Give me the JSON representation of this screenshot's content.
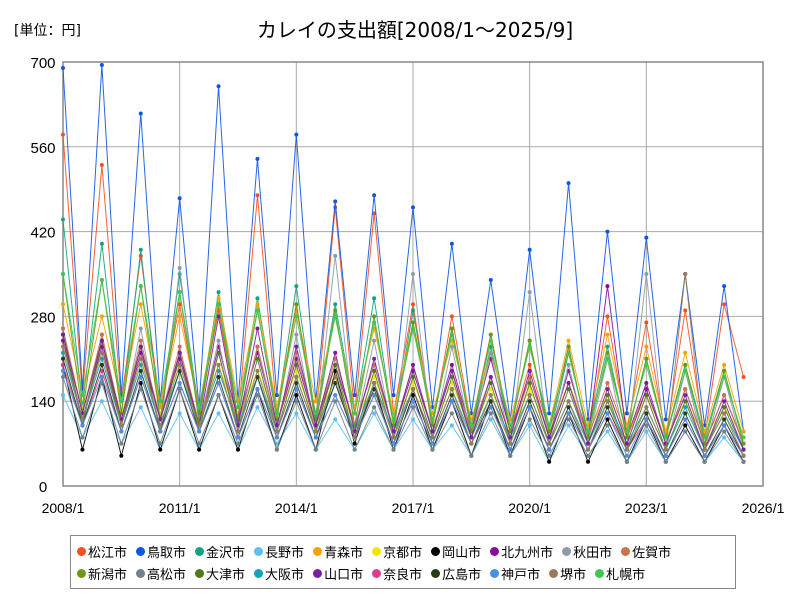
{
  "chart_data": {
    "type": "line",
    "title": "カレイの支出額[2008/1～2025/9]",
    "unit_label": "[単位：円]",
    "xlabel": "",
    "ylabel": "",
    "ylim": [
      0,
      700
    ],
    "yticks": [
      0,
      140,
      280,
      420,
      560,
      700
    ],
    "xticks": [
      "2008/1",
      "2011/1",
      "2014/1",
      "2017/1",
      "2020/1",
      "2023/1",
      "2026/1"
    ],
    "xrange_months": [
      "2008/1",
      "2026/1"
    ],
    "grid": true,
    "legend_position": "bottom",
    "x": [
      "2008/1",
      "2008/7",
      "2009/1",
      "2009/7",
      "2010/1",
      "2010/7",
      "2011/1",
      "2011/7",
      "2012/1",
      "2012/7",
      "2013/1",
      "2013/7",
      "2014/1",
      "2014/7",
      "2015/1",
      "2015/7",
      "2016/1",
      "2016/7",
      "2017/1",
      "2017/7",
      "2018/1",
      "2018/7",
      "2019/1",
      "2019/7",
      "2020/1",
      "2020/7",
      "2021/1",
      "2021/7",
      "2022/1",
      "2022/7",
      "2023/1",
      "2023/7",
      "2024/1",
      "2024/7",
      "2025/1",
      "2025/7"
    ],
    "series": [
      {
        "name": "松江市",
        "color": "#f4511e",
        "values": [
          580,
          150,
          530,
          140,
          380,
          130,
          300,
          120,
          290,
          110,
          480,
          120,
          300,
          110,
          460,
          120,
          450,
          120,
          300,
          100,
          280,
          100,
          250,
          90,
          200,
          90,
          230,
          80,
          280,
          90,
          270,
          80,
          290,
          80,
          300,
          180
        ]
      },
      {
        "name": "鳥取市",
        "color": "#0d57e6",
        "values": [
          690,
          160,
          695,
          150,
          615,
          140,
          475,
          130,
          660,
          140,
          540,
          150,
          580,
          140,
          470,
          150,
          480,
          150,
          460,
          130,
          400,
          120,
          340,
          110,
          390,
          120,
          500,
          110,
          420,
          120,
          410,
          110,
          350,
          100,
          330,
          90
        ]
      },
      {
        "name": "金沢市",
        "color": "#14a37f",
        "values": [
          440,
          130,
          400,
          120,
          390,
          110,
          350,
          120,
          320,
          110,
          310,
          120,
          330,
          110,
          300,
          120,
          310,
          100,
          290,
          100,
          260,
          90,
          230,
          90,
          240,
          80,
          220,
          90,
          230,
          80,
          210,
          80,
          200,
          80,
          190,
          70
        ]
      },
      {
        "name": "長野市",
        "color": "#5cc1f2",
        "values": [
          150,
          80,
          140,
          70,
          130,
          60,
          120,
          60,
          120,
          60,
          130,
          70,
          120,
          60,
          110,
          60,
          120,
          60,
          110,
          60,
          100,
          50,
          110,
          50,
          100,
          40,
          100,
          50,
          90,
          40,
          90,
          40,
          90,
          40,
          80,
          40
        ]
      },
      {
        "name": "青森市",
        "color": "#f5a300",
        "values": [
          300,
          150,
          280,
          140,
          300,
          130,
          280,
          130,
          310,
          140,
          300,
          130,
          290,
          140,
          280,
          130,
          260,
          120,
          270,
          120,
          240,
          110,
          220,
          110,
          230,
          100,
          240,
          100,
          250,
          100,
          230,
          90,
          220,
          90,
          200,
          90
        ]
      },
      {
        "name": "京都市",
        "color": "#f2e600",
        "values": [
          230,
          130,
          220,
          120,
          210,
          120,
          200,
          110,
          200,
          110,
          190,
          110,
          190,
          100,
          180,
          100,
          180,
          100,
          170,
          100,
          170,
          90,
          160,
          90,
          160,
          90,
          170,
          90,
          150,
          80,
          150,
          80,
          140,
          80,
          130,
          80
        ]
      },
      {
        "name": "岡山市",
        "color": "#000000",
        "values": [
          200,
          60,
          180,
          50,
          170,
          60,
          160,
          60,
          150,
          60,
          160,
          60,
          150,
          60,
          190,
          70,
          170,
          60,
          150,
          60,
          140,
          50,
          140,
          50,
          130,
          40,
          120,
          40,
          110,
          40,
          110,
          40,
          100,
          40,
          100,
          40
        ]
      },
      {
        "name": "北九州市",
        "color": "#8a0d99",
        "values": [
          240,
          110,
          230,
          100,
          220,
          110,
          210,
          100,
          230,
          110,
          220,
          100,
          210,
          100,
          200,
          100,
          200,
          90,
          190,
          90,
          200,
          90,
          210,
          90,
          180,
          80,
          190,
          80,
          330,
          80,
          170,
          70,
          160,
          70,
          150,
          70
        ]
      },
      {
        "name": "秋田市",
        "color": "#8e9aa8",
        "values": [
          260,
          100,
          250,
          100,
          260,
          90,
          360,
          100,
          240,
          90,
          230,
          90,
          250,
          90,
          380,
          90,
          240,
          80,
          350,
          80,
          230,
          80,
          220,
          70,
          320,
          70,
          200,
          70,
          210,
          60,
          350,
          60,
          190,
          60,
          180,
          60
        ]
      },
      {
        "name": "佐賀市",
        "color": "#c8744c",
        "values": [
          260,
          120,
          250,
          110,
          240,
          110,
          230,
          100,
          220,
          100,
          230,
          100,
          220,
          100,
          210,
          100,
          200,
          90,
          200,
          90,
          190,
          90,
          180,
          80,
          180,
          80,
          170,
          80,
          170,
          80,
          160,
          70,
          160,
          70,
          150,
          70
        ]
      },
      {
        "name": "新潟市",
        "color": "#6a9a12",
        "values": [
          350,
          120,
          340,
          120,
          330,
          110,
          320,
          110,
          300,
          110,
          290,
          110,
          300,
          100,
          290,
          100,
          280,
          100,
          270,
          100,
          260,
          90,
          250,
          90,
          240,
          90,
          230,
          80,
          220,
          80,
          210,
          80,
          200,
          70,
          190,
          70
        ]
      },
      {
        "name": "高松市",
        "color": "#6f8389",
        "values": [
          180,
          80,
          170,
          70,
          160,
          70,
          160,
          70,
          150,
          70,
          150,
          60,
          140,
          60,
          140,
          60,
          130,
          60,
          130,
          60,
          120,
          50,
          120,
          50,
          110,
          50,
          110,
          50,
          100,
          40,
          100,
          40,
          90,
          40,
          90,
          40
        ]
      },
      {
        "name": "大津市",
        "color": "#4f7a1e",
        "values": [
          250,
          100,
          240,
          100,
          230,
          90,
          220,
          90,
          220,
          90,
          210,
          90,
          200,
          90,
          200,
          80,
          190,
          80,
          180,
          80,
          180,
          80,
          170,
          70,
          170,
          70,
          160,
          70,
          150,
          60,
          150,
          60,
          140,
          60,
          130,
          60
        ]
      },
      {
        "name": "大阪市",
        "color": "#12a3b8",
        "values": [
          220,
          110,
          210,
          100,
          200,
          100,
          190,
          100,
          190,
          100,
          180,
          90,
          180,
          90,
          170,
          90,
          170,
          90,
          160,
          80,
          160,
          80,
          150,
          80,
          150,
          70,
          140,
          70,
          140,
          70,
          130,
          60,
          130,
          60,
          120,
          60
        ]
      },
      {
        "name": "山口市",
        "color": "#7b1fa2",
        "values": [
          250,
          120,
          240,
          110,
          230,
          110,
          220,
          100,
          280,
          100,
          260,
          100,
          230,
          100,
          220,
          90,
          210,
          90,
          200,
          90,
          190,
          80,
          180,
          80,
          190,
          80,
          170,
          70,
          160,
          70,
          160,
          70,
          150,
          60,
          140,
          60
        ]
      },
      {
        "name": "奈良市",
        "color": "#e33b8c",
        "values": [
          200,
          100,
          190,
          90,
          180,
          90,
          170,
          90,
          170,
          80,
          160,
          80,
          160,
          80,
          150,
          80,
          150,
          70,
          140,
          70,
          140,
          70,
          130,
          60,
          130,
          60,
          120,
          60,
          120,
          60,
          110,
          50,
          110,
          50,
          100,
          50
        ]
      },
      {
        "name": "広島市",
        "color": "#263d1a",
        "values": [
          210,
          100,
          200,
          90,
          190,
          90,
          190,
          90,
          180,
          80,
          180,
          80,
          170,
          80,
          170,
          80,
          160,
          70,
          160,
          70,
          150,
          70,
          140,
          60,
          140,
          60,
          130,
          60,
          130,
          60,
          120,
          50,
          120,
          50,
          110,
          50
        ]
      },
      {
        "name": "神戸市",
        "color": "#4a90e2",
        "values": [
          190,
          100,
          180,
          90,
          180,
          90,
          170,
          90,
          170,
          80,
          160,
          80,
          160,
          80,
          150,
          80,
          150,
          70,
          140,
          70,
          140,
          70,
          130,
          60,
          130,
          60,
          120,
          60,
          120,
          50,
          110,
          50,
          110,
          50,
          100,
          50
        ]
      },
      {
        "name": "堺市",
        "color": "#9b7a55",
        "values": [
          230,
          110,
          220,
          100,
          210,
          100,
          200,
          100,
          200,
          90,
          190,
          90,
          180,
          90,
          180,
          80,
          170,
          80,
          160,
          80,
          160,
          70,
          150,
          70,
          150,
          70,
          140,
          60,
          140,
          60,
          130,
          60,
          350,
          60,
          120,
          50
        ]
      },
      {
        "name": "札幌市",
        "color": "#3ec653",
        "values": [
          350,
          150,
          340,
          140,
          330,
          140,
          320,
          130,
          300,
          130,
          290,
          120,
          280,
          120,
          280,
          120,
          270,
          110,
          260,
          110,
          250,
          100,
          240,
          100,
          230,
          100,
          220,
          90,
          210,
          90,
          200,
          80,
          190,
          80,
          180,
          80
        ]
      }
    ]
  }
}
